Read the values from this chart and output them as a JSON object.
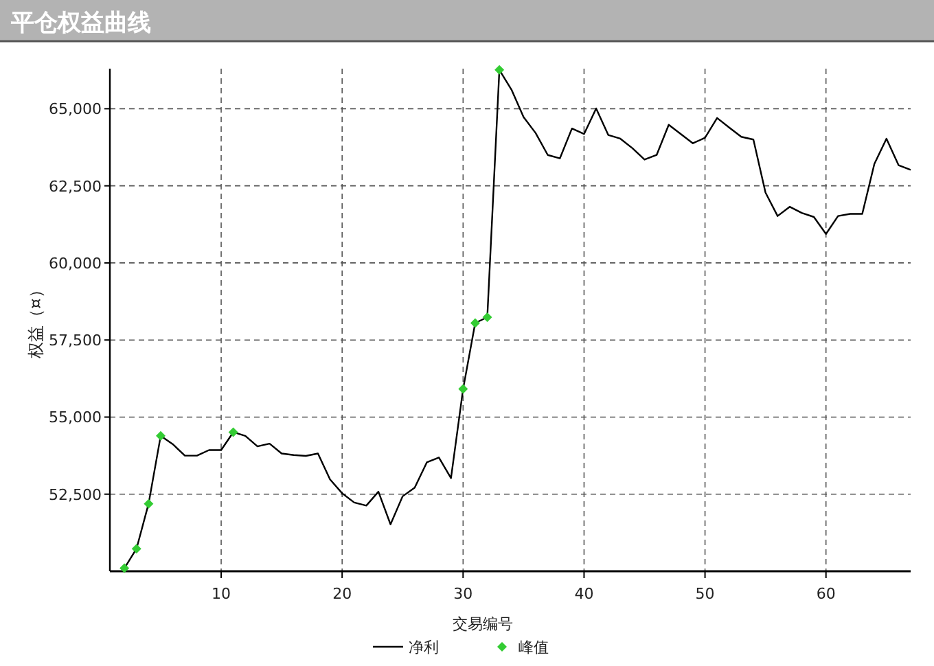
{
  "chart_data": {
    "type": "line",
    "title": "平仓权益曲线",
    "xlabel": "交易编号",
    "ylabel": "权益（¤）",
    "xlim": [
      0.8,
      67
    ],
    "ylim": [
      50000,
      66300
    ],
    "xticks": [
      10,
      20,
      30,
      40,
      50,
      60
    ],
    "yticks": [
      {
        "value": 52500,
        "label": "52,500"
      },
      {
        "value": 55000,
        "label": "55,000"
      },
      {
        "value": 57500,
        "label": "57,500"
      },
      {
        "value": 60000,
        "label": "60,000"
      },
      {
        "value": 62500,
        "label": "62,500"
      },
      {
        "value": 65000,
        "label": "65,000"
      }
    ],
    "grid": true,
    "legend": "bottom",
    "series": [
      {
        "name": "净利",
        "type": "line",
        "color": "#000000",
        "line_style": "solid",
        "marker": "none",
        "x": [
          2,
          3,
          4,
          5,
          6,
          7,
          8,
          9,
          10,
          11,
          12,
          13,
          14,
          15,
          16,
          17,
          18,
          19,
          20,
          21,
          22,
          23,
          24,
          25,
          26,
          27,
          28,
          29,
          30,
          31,
          32,
          33,
          34,
          35,
          36,
          37,
          38,
          39,
          40,
          41,
          42,
          43,
          44,
          45,
          46,
          47,
          48,
          49,
          50,
          51,
          52,
          53,
          54,
          55,
          56,
          57,
          58,
          59,
          60,
          61,
          62,
          63,
          64,
          65,
          66,
          67
        ],
        "values": [
          50100,
          50730,
          52190,
          54390,
          54120,
          53750,
          53750,
          53930,
          53930,
          54510,
          54390,
          54050,
          54140,
          53820,
          53770,
          53740,
          53820,
          52980,
          52530,
          52230,
          52130,
          52580,
          51520,
          52430,
          52710,
          53530,
          53690,
          53020,
          55910,
          58050,
          58240,
          66260,
          65620,
          64730,
          64210,
          63500,
          63390,
          64360,
          64180,
          65010,
          64150,
          64030,
          63720,
          63350,
          63500,
          64480,
          64180,
          63880,
          64060,
          64700,
          64390,
          64090,
          64000,
          62280,
          61520,
          61820,
          61620,
          61490,
          60940,
          61520,
          61590,
          61590,
          63210,
          64030,
          63170,
          63020
        ]
      },
      {
        "name": "峰值",
        "type": "scatter",
        "color": "#33cc33",
        "marker": "diamond",
        "x": [
          2,
          3,
          4,
          5,
          11,
          30,
          31,
          32,
          33
        ],
        "values": [
          50100,
          50730,
          52190,
          54390,
          54510,
          55910,
          58050,
          58240,
          66260
        ]
      }
    ]
  }
}
